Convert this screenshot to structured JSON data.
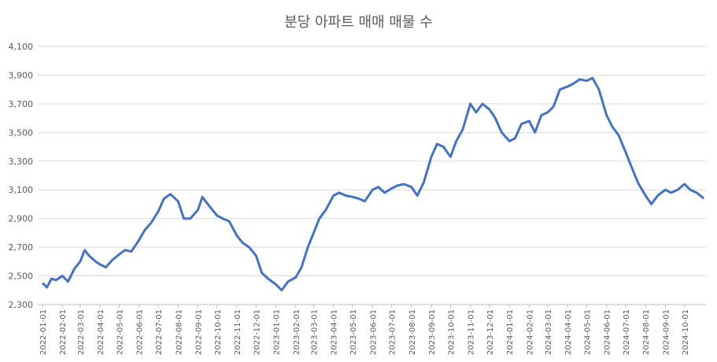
{
  "chart_data": {
    "type": "line",
    "title": "분당 아파트 매매 매물 수",
    "xlabel": "",
    "ylabel": "",
    "ylim": [
      2300,
      4100
    ],
    "y_ticks": [
      "2,300",
      "2,500",
      "2,700",
      "2,900",
      "3,100",
      "3,300",
      "3,500",
      "3,700",
      "3,900",
      "4,100"
    ],
    "y_tick_values": [
      2300,
      2500,
      2700,
      2900,
      3100,
      3300,
      3500,
      3700,
      3900,
      4100
    ],
    "x_ticks": [
      "2022-01-01",
      "2022-02-01",
      "2022-03-01",
      "2022-04-01",
      "2022-05-01",
      "2022-06-01",
      "2022-07-01",
      "2022-08-01",
      "2022-09-01",
      "2022-10-01",
      "2022-11-01",
      "2022-12-01",
      "2023-01-01",
      "2023-02-01",
      "2023-03-01",
      "2023-04-01",
      "2023-05-01",
      "2023-06-01",
      "2023-07-01",
      "2023-08-01",
      "2023-09-01",
      "2023-10-01",
      "2023-11-01",
      "2023-12-01",
      "2024-01-01",
      "2024-02-01",
      "2024-03-01",
      "2024-04-01",
      "2024-05-01",
      "2024-06-01",
      "2024-07-01",
      "2024-08-01",
      "2024-09-01",
      "2024-10-01"
    ],
    "grid": true,
    "legend": "none",
    "color": "#4472C4",
    "series": [
      {
        "values": [
          [
            "2022-01-01",
            2450
          ],
          [
            "2022-01-08",
            2420
          ],
          [
            "2022-01-15",
            2480
          ],
          [
            "2022-01-22",
            2470
          ],
          [
            "2022-02-01",
            2500
          ],
          [
            "2022-02-10",
            2460
          ],
          [
            "2022-02-20",
            2550
          ],
          [
            "2022-03-01",
            2600
          ],
          [
            "2022-03-08",
            2680
          ],
          [
            "2022-03-15",
            2640
          ],
          [
            "2022-03-25",
            2600
          ],
          [
            "2022-04-01",
            2580
          ],
          [
            "2022-04-10",
            2560
          ],
          [
            "2022-04-20",
            2610
          ],
          [
            "2022-05-01",
            2650
          ],
          [
            "2022-05-10",
            2680
          ],
          [
            "2022-05-20",
            2670
          ],
          [
            "2022-06-01",
            2750
          ],
          [
            "2022-06-10",
            2820
          ],
          [
            "2022-06-20",
            2870
          ],
          [
            "2022-07-01",
            2950
          ],
          [
            "2022-07-10",
            3040
          ],
          [
            "2022-07-20",
            3070
          ],
          [
            "2022-08-01",
            3020
          ],
          [
            "2022-08-10",
            2900
          ],
          [
            "2022-08-20",
            2900
          ],
          [
            "2022-09-01",
            2960
          ],
          [
            "2022-09-08",
            3050
          ],
          [
            "2022-09-20",
            2980
          ],
          [
            "2022-10-01",
            2920
          ],
          [
            "2022-10-10",
            2900
          ],
          [
            "2022-10-20",
            2880
          ],
          [
            "2022-11-01",
            2780
          ],
          [
            "2022-11-10",
            2730
          ],
          [
            "2022-11-20",
            2700
          ],
          [
            "2022-12-01",
            2640
          ],
          [
            "2022-12-10",
            2520
          ],
          [
            "2022-12-20",
            2480
          ],
          [
            "2023-01-01",
            2440
          ],
          [
            "2023-01-10",
            2400
          ],
          [
            "2023-01-20",
            2460
          ],
          [
            "2023-02-01",
            2490
          ],
          [
            "2023-02-10",
            2560
          ],
          [
            "2023-02-20",
            2700
          ],
          [
            "2023-03-01",
            2800
          ],
          [
            "2023-03-10",
            2900
          ],
          [
            "2023-03-20",
            2960
          ],
          [
            "2023-04-01",
            3060
          ],
          [
            "2023-04-10",
            3080
          ],
          [
            "2023-04-20",
            3060
          ],
          [
            "2023-05-01",
            3050
          ],
          [
            "2023-05-10",
            3040
          ],
          [
            "2023-05-20",
            3020
          ],
          [
            "2023-06-01",
            3100
          ],
          [
            "2023-06-10",
            3120
          ],
          [
            "2023-06-20",
            3080
          ],
          [
            "2023-07-01",
            3110
          ],
          [
            "2023-07-10",
            3130
          ],
          [
            "2023-07-20",
            3140
          ],
          [
            "2023-08-01",
            3120
          ],
          [
            "2023-08-10",
            3060
          ],
          [
            "2023-08-20",
            3150
          ],
          [
            "2023-09-01",
            3330
          ],
          [
            "2023-09-10",
            3420
          ],
          [
            "2023-09-20",
            3400
          ],
          [
            "2023-10-01",
            3330
          ],
          [
            "2023-10-10",
            3440
          ],
          [
            "2023-10-20",
            3520
          ],
          [
            "2023-11-01",
            3700
          ],
          [
            "2023-11-10",
            3640
          ],
          [
            "2023-11-20",
            3700
          ],
          [
            "2023-12-01",
            3660
          ],
          [
            "2023-12-10",
            3600
          ],
          [
            "2023-12-20",
            3500
          ],
          [
            "2024-01-01",
            3440
          ],
          [
            "2024-01-10",
            3460
          ],
          [
            "2024-01-20",
            3560
          ],
          [
            "2024-02-01",
            3580
          ],
          [
            "2024-02-10",
            3500
          ],
          [
            "2024-02-20",
            3620
          ],
          [
            "2024-03-01",
            3640
          ],
          [
            "2024-03-10",
            3680
          ],
          [
            "2024-03-20",
            3800
          ],
          [
            "2024-04-01",
            3820
          ],
          [
            "2024-04-10",
            3840
          ],
          [
            "2024-04-20",
            3870
          ],
          [
            "2024-05-01",
            3860
          ],
          [
            "2024-05-10",
            3880
          ],
          [
            "2024-05-20",
            3800
          ],
          [
            "2024-06-01",
            3620
          ],
          [
            "2024-06-10",
            3540
          ],
          [
            "2024-06-20",
            3480
          ],
          [
            "2024-07-01",
            3360
          ],
          [
            "2024-07-10",
            3260
          ],
          [
            "2024-07-20",
            3150
          ],
          [
            "2024-08-01",
            3060
          ],
          [
            "2024-08-10",
            3000
          ],
          [
            "2024-08-20",
            3060
          ],
          [
            "2024-09-01",
            3100
          ],
          [
            "2024-09-10",
            3080
          ],
          [
            "2024-09-20",
            3100
          ],
          [
            "2024-10-01",
            3140
          ],
          [
            "2024-10-10",
            3100
          ],
          [
            "2024-10-20",
            3080
          ],
          [
            "2024-10-31",
            3040
          ]
        ]
      }
    ]
  }
}
